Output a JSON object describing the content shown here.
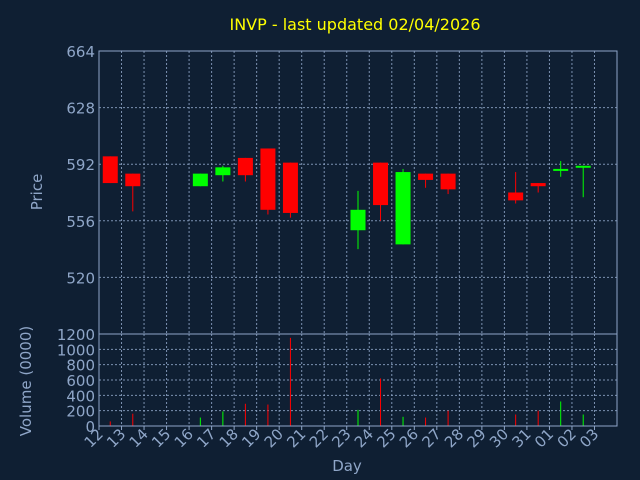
{
  "chart_data": [
    {
      "type": "candlestick",
      "title": "INVP - last updated 02/04/2026",
      "ylabel": "Price",
      "ylim": [
        484,
        664
      ],
      "y_ticks": [
        520,
        556,
        592,
        628,
        664
      ],
      "grid": true,
      "colors": {
        "up": "#00ff00",
        "down": "#ff0000"
      },
      "days": [
        "12",
        "13",
        "14",
        "15",
        "16",
        "17",
        "18",
        "19",
        "20",
        "21",
        "22",
        "23",
        "24",
        "25",
        "26",
        "27",
        "28",
        "29",
        "30",
        "31",
        "01",
        "02",
        "03"
      ],
      "candles": [
        {
          "day": "12",
          "open": 597,
          "high": 597,
          "low": 580,
          "close": 580
        },
        {
          "day": "13",
          "open": 586,
          "high": 586,
          "low": 562,
          "close": 578
        },
        {
          "day": "16",
          "open": 578,
          "high": 586,
          "low": 578,
          "close": 586
        },
        {
          "day": "17",
          "open": 585,
          "high": 591,
          "low": 581,
          "close": 590
        },
        {
          "day": "18",
          "open": 596,
          "high": 596,
          "low": 581,
          "close": 585
        },
        {
          "day": "19",
          "open": 602,
          "high": 602,
          "low": 560,
          "close": 563
        },
        {
          "day": "20",
          "open": 593,
          "high": 593,
          "low": 558,
          "close": 561
        },
        {
          "day": "23",
          "open": 550,
          "high": 575,
          "low": 538,
          "close": 563
        },
        {
          "day": "24",
          "open": 593,
          "high": 593,
          "low": 556,
          "close": 566
        },
        {
          "day": "25",
          "open": 541,
          "high": 589,
          "low": 541,
          "close": 587
        },
        {
          "day": "26",
          "open": 586,
          "high": 586,
          "low": 577,
          "close": 582
        },
        {
          "day": "27",
          "open": 586,
          "high": 586,
          "low": 573,
          "close": 576
        },
        {
          "day": "30",
          "open": 574,
          "high": 587,
          "low": 567,
          "close": 569
        },
        {
          "day": "31",
          "open": 580,
          "high": 580,
          "low": 574,
          "close": 578
        },
        {
          "day": "01",
          "open": 588,
          "high": 594,
          "low": 584,
          "close": 589
        },
        {
          "day": "02",
          "open": 590,
          "high": 591,
          "low": 571,
          "close": 591
        }
      ]
    },
    {
      "type": "bar",
      "ylabel": "Volume (0000)",
      "xlabel": "Day",
      "ylim": [
        0,
        1200
      ],
      "y_ticks": [
        0,
        200,
        400,
        600,
        800,
        1000,
        1200
      ],
      "grid": true,
      "days": [
        "12",
        "13",
        "14",
        "15",
        "16",
        "17",
        "18",
        "19",
        "20",
        "21",
        "22",
        "23",
        "24",
        "25",
        "26",
        "27",
        "28",
        "29",
        "30",
        "31",
        "01",
        "02",
        "03"
      ],
      "bars": [
        {
          "day": "12",
          "value": 60,
          "color": "#ff0000"
        },
        {
          "day": "13",
          "value": 160,
          "color": "#ff0000"
        },
        {
          "day": "16",
          "value": 110,
          "color": "#00ff00"
        },
        {
          "day": "17",
          "value": 190,
          "color": "#00ff00"
        },
        {
          "day": "18",
          "value": 290,
          "color": "#ff0000"
        },
        {
          "day": "19",
          "value": 280,
          "color": "#ff0000"
        },
        {
          "day": "20",
          "value": 1150,
          "color": "#ff0000"
        },
        {
          "day": "23",
          "value": 210,
          "color": "#00ff00"
        },
        {
          "day": "24",
          "value": 620,
          "color": "#ff0000"
        },
        {
          "day": "25",
          "value": 120,
          "color": "#00ff00"
        },
        {
          "day": "26",
          "value": 110,
          "color": "#ff0000"
        },
        {
          "day": "27",
          "value": 200,
          "color": "#ff0000"
        },
        {
          "day": "30",
          "value": 150,
          "color": "#ff0000"
        },
        {
          "day": "31",
          "value": 200,
          "color": "#ff0000"
        },
        {
          "day": "01",
          "value": 320,
          "color": "#00ff00"
        },
        {
          "day": "02",
          "value": 150,
          "color": "#00ff00"
        }
      ]
    }
  ]
}
